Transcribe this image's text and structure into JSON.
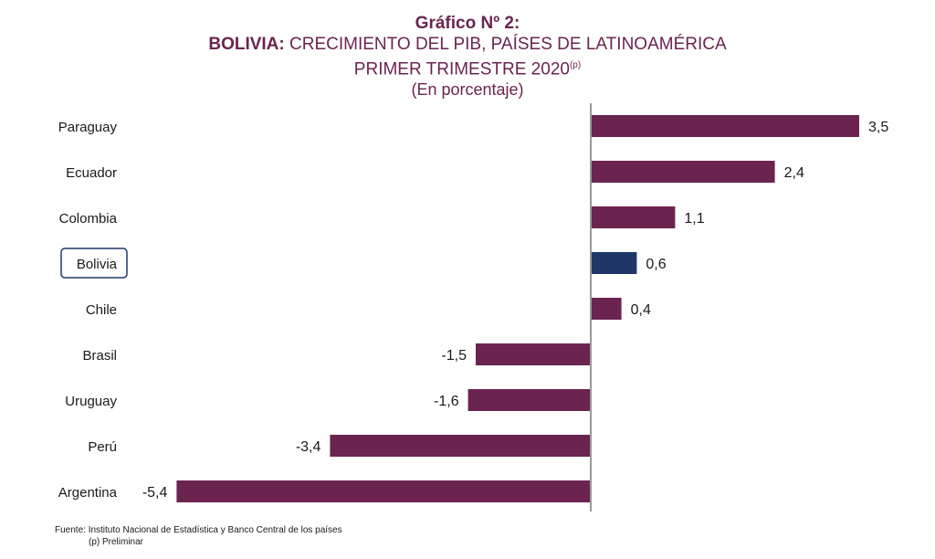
{
  "title": {
    "line1": "Gráfico Nº 2:",
    "line2_bold": "BOLIVIA:",
    "line2_rest": " CRECIMIENTO DEL PIB, PAÍSES DE LATINOAMÉRICA",
    "line3": "PRIMER TRIMESTRE 2020",
    "line3_sup": "(p)",
    "line4": "(En porcentaje)"
  },
  "footer": {
    "source": "Fuente: Instituto Nacional de Estadística y  Banco Central de los países",
    "note": "(p) Preliminar"
  },
  "colors": {
    "bar": "#6b2450",
    "highlight": "#1f3868",
    "axis": "#999999"
  },
  "chart_data": {
    "type": "bar",
    "orientation": "horizontal",
    "categories": [
      "Paraguay",
      "Ecuador",
      "Colombia",
      "Bolivia",
      "Chile",
      "Brasil",
      "Uruguay",
      "Perú",
      "Argentina"
    ],
    "values": [
      3.5,
      2.4,
      1.1,
      0.6,
      0.4,
      -1.5,
      -1.6,
      -3.4,
      -5.4
    ],
    "value_labels": [
      "3,5",
      "2,4",
      "1,1",
      "0,6",
      "0,4",
      "-1,5",
      "-1,6",
      "-3,4",
      "-5,4"
    ],
    "highlight_category": "Bolivia",
    "xlim": [
      -5.4,
      3.5
    ],
    "grid": false,
    "legend": "none"
  }
}
